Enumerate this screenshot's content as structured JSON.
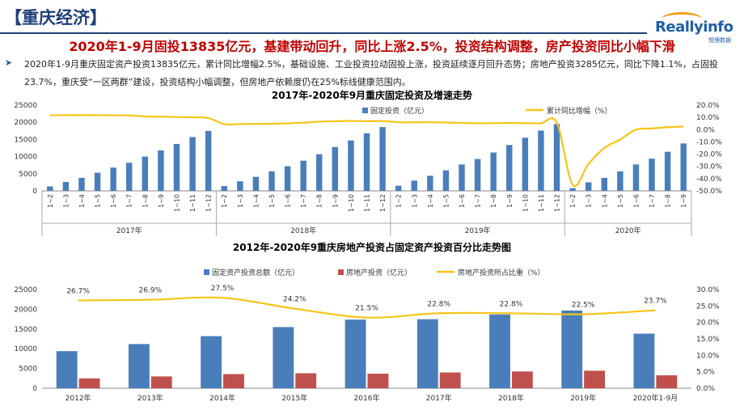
{
  "header": {
    "title": "【重庆经济】"
  },
  "logo": {
    "name": "Reallyinfo",
    "sub": "悦理数据"
  },
  "headline": "2020年1-9月固投13835亿元，基建带动回升，同比上涨2.5%，投资结构调整，房产投资同比小幅下滑",
  "summary": {
    "bullet": "➤",
    "text": "2020年1-9月重庆固定资产投资13835亿元，累计同比增幅2.5%，基础设施、工业投资拉动固投上涨，投资延续逐月回升态势；房地产投资3285亿元，同比下降1.1%，占固投23.7%，重庆受“一区两群”建设，投资结构小幅调整，但房地产依赖度仍在25%标线健康范围内。"
  },
  "chart_data": [
    {
      "type": "bar",
      "title": "2017年-2020年9月重庆固定投资及增速走势",
      "categories": [
        "1~2",
        "1~3",
        "1~4",
        "1~5",
        "1~6",
        "1~7",
        "1~8",
        "1~9",
        "1~10",
        "1~11",
        "1~12",
        "1~2",
        "1~3",
        "1~4",
        "1~5",
        "1~6",
        "1~7",
        "1~8",
        "1~9",
        "1~10",
        "1~11",
        "1~12",
        "1~2",
        "1~3",
        "1~4",
        "1~5",
        "1~6",
        "1~7",
        "1~8",
        "1~9",
        "1~10",
        "1~11",
        "1~12",
        "1~2",
        "1~3",
        "1~4",
        "1~5",
        "1~6",
        "1~7",
        "1~8",
        "1~9"
      ],
      "groups": [
        {
          "label": "2017年",
          "count": 11
        },
        {
          "label": "2018年",
          "count": 11
        },
        {
          "label": "2019年",
          "count": 11
        },
        {
          "label": "2020年",
          "count": 8
        }
      ],
      "series": [
        {
          "name": "固定投资（亿元）",
          "type": "bar",
          "axis": "left",
          "color": "#4a7ebb",
          "values": [
            1300,
            2600,
            3800,
            5300,
            6800,
            8200,
            10000,
            11800,
            13700,
            15700,
            17500,
            1400,
            2800,
            4100,
            5700,
            7200,
            8800,
            10700,
            12800,
            14700,
            16800,
            18600,
            1500,
            3000,
            4400,
            6000,
            7700,
            9300,
            11200,
            13400,
            15500,
            17600,
            19500,
            800,
            2500,
            3800,
            5700,
            7700,
            9400,
            11400,
            13835
          ]
        },
        {
          "name": "累计同比增幅（%）",
          "type": "line",
          "axis": "right",
          "color": "#f5c518",
          "values": [
            11.7,
            11.8,
            11.8,
            11.8,
            11.7,
            11.6,
            10.8,
            10.6,
            10.3,
            10.1,
            9.5,
            4.5,
            4.6,
            4.7,
            4.8,
            5.1,
            5.7,
            6.5,
            6.9,
            7.1,
            6.9,
            7.0,
            6.1,
            6.0,
            6.1,
            5.8,
            5.5,
            5.2,
            5.3,
            5.4,
            5.3,
            5.2,
            5.7,
            -45.0,
            -28.0,
            -15.0,
            -8.0,
            0.0,
            1.0,
            2.0,
            2.5
          ]
        }
      ],
      "y_left": {
        "min": 0,
        "max": 25000,
        "ticks": [
          "0",
          "5000",
          "10000",
          "15000",
          "20000",
          "25000"
        ]
      },
      "y_right": {
        "min": -50,
        "max": 20,
        "ticks": [
          "-50.0%",
          "-40.0%",
          "-30.0%",
          "-20.0%",
          "-10.0%",
          "0.0%",
          "10.0%",
          "20.0%"
        ]
      },
      "legend": "top"
    },
    {
      "type": "bar",
      "title": "2012年-2020年9重庆房地产投资占固定资产投资百分比走势图",
      "categories": [
        "2012年",
        "2013年",
        "2014年",
        "2015年",
        "2016年",
        "2017年",
        "2018年",
        "2019年",
        "2020年1-9月"
      ],
      "series": [
        {
          "name": "固定资产投资总额（亿元）",
          "type": "bar",
          "axis": "left",
          "color": "#4a7ebb",
          "values": [
            9400,
            11200,
            13200,
            15500,
            17400,
            17500,
            18700,
            19700,
            13835
          ]
        },
        {
          "name": "房地产投资（亿元）",
          "type": "bar",
          "axis": "left",
          "color": "#c0504d",
          "values": [
            2500,
            3000,
            3600,
            3800,
            3700,
            4000,
            4250,
            4440,
            3285
          ]
        },
        {
          "name": "房地产投资所占比重（%）",
          "type": "line",
          "axis": "right",
          "color": "#f5c518",
          "values": [
            26.7,
            26.9,
            27.5,
            24.2,
            21.5,
            22.8,
            22.8,
            22.5,
            23.7
          ],
          "labels": [
            "26.7%",
            "26.9%",
            "27.5%",
            "24.2%",
            "21.5%",
            "22.8%",
            "22.8%",
            "22.5%",
            "23.7%"
          ]
        }
      ],
      "y_left": {
        "min": 0,
        "max": 25000,
        "ticks": [
          "0",
          "5000",
          "10000",
          "15000",
          "20000",
          "25000"
        ]
      },
      "y_right": {
        "min": 0,
        "max": 30,
        "ticks": [
          "0.0%",
          "5.0%",
          "10.0%",
          "15.0%",
          "20.0%",
          "25.0%",
          "30.0%"
        ]
      },
      "legend": "top"
    }
  ]
}
